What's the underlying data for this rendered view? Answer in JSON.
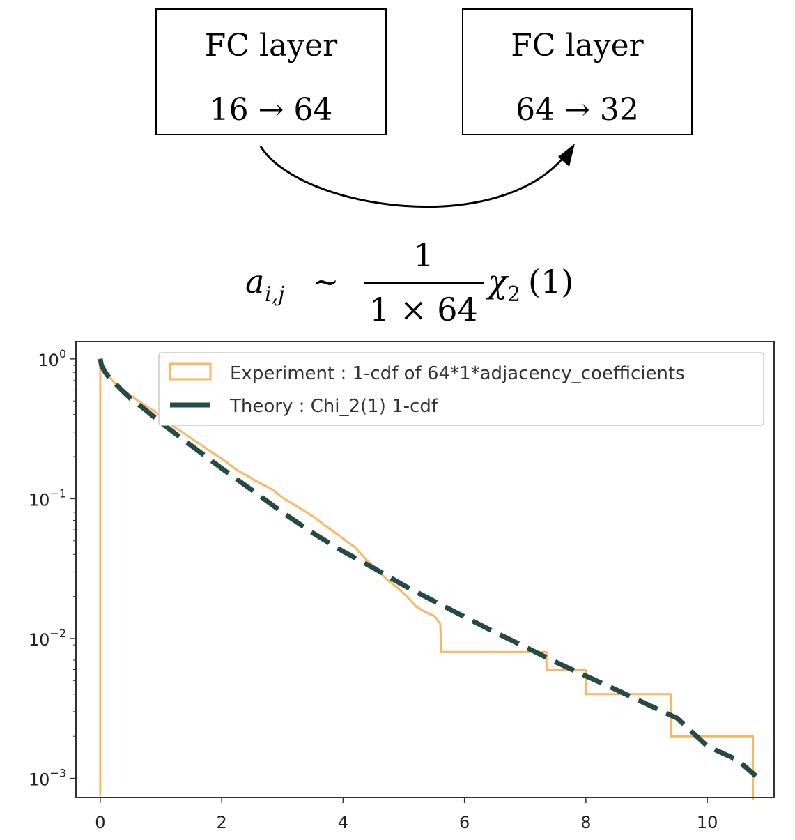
{
  "diagram": {
    "box1": {
      "title": "FC layer",
      "dims": "16 → 64"
    },
    "box2": {
      "title": "FC layer",
      "dims": "64 → 32"
    },
    "formula": {
      "lhs_var": "a",
      "lhs_sub": "i,j",
      "relation": "∼",
      "numerator": "1",
      "denominator": "1 × 64",
      "dist": "χ",
      "dist_sub": "2",
      "dist_arg": "(1)"
    }
  },
  "chart_data": {
    "type": "line",
    "title": "",
    "xlabel": "",
    "ylabel": "",
    "xlim": [
      -0.4,
      11.1
    ],
    "ylim": [
      0.00073,
      1.33
    ],
    "yscale": "log",
    "x_ticks": [
      {
        "value": 0,
        "label": "0"
      },
      {
        "value": 2,
        "label": "2"
      },
      {
        "value": 4,
        "label": "4"
      },
      {
        "value": 6,
        "label": "6"
      },
      {
        "value": 8,
        "label": "8"
      },
      {
        "value": 10,
        "label": "10"
      }
    ],
    "y_ticks": [
      {
        "value": 1,
        "base": "10",
        "exp": "0"
      },
      {
        "value": 0.1,
        "base": "10",
        "exp": "−1"
      },
      {
        "value": 0.01,
        "base": "10",
        "exp": "−2"
      },
      {
        "value": 0.001,
        "base": "10",
        "exp": "−3"
      }
    ],
    "grid": false,
    "legend_position": "top-right",
    "series": [
      {
        "name": "Experiment : 1-cdf of 64*1*adjacency_coefficients",
        "kind": "step",
        "color": "#ffb45e",
        "x": [
          0,
          0,
          0.03,
          0.1,
          0.2,
          0.3,
          0.45,
          0.6,
          0.75,
          0.9,
          1.05,
          1.2,
          1.35,
          1.5,
          1.65,
          1.8,
          1.95,
          2.1,
          2.25,
          2.4,
          2.55,
          2.7,
          2.85,
          3.0,
          3.15,
          3.3,
          3.5,
          3.65,
          3.8,
          3.95,
          4.1,
          4.2,
          4.3,
          4.4,
          4.5,
          4.6,
          4.7,
          4.8,
          4.9,
          5.0,
          5.1,
          5.2,
          5.35,
          5.5,
          5.6,
          5.62,
          7.35,
          7.35,
          8.0,
          8.0,
          9.4,
          9.4,
          10.75,
          10.75
        ],
        "y": [
          0.00075,
          1.0,
          0.93,
          0.82,
          0.7,
          0.63,
          0.57,
          0.51,
          0.46,
          0.42,
          0.37,
          0.33,
          0.3,
          0.27,
          0.245,
          0.22,
          0.2,
          0.18,
          0.16,
          0.148,
          0.135,
          0.125,
          0.115,
          0.102,
          0.093,
          0.085,
          0.075,
          0.067,
          0.06,
          0.054,
          0.048,
          0.045,
          0.04,
          0.036,
          0.033,
          0.03,
          0.027,
          0.025,
          0.023,
          0.021,
          0.019,
          0.017,
          0.0155,
          0.0145,
          0.0128,
          0.008,
          0.008,
          0.006,
          0.006,
          0.004,
          0.004,
          0.002,
          0.002,
          0.0007
        ]
      },
      {
        "name": "Theory : Chi_2(1) 1-cdf",
        "kind": "dashed",
        "color": "#264a45",
        "x": [
          0.001,
          0.02,
          0.06,
          0.12,
          0.2,
          0.35,
          0.5,
          0.75,
          1,
          1.5,
          2,
          2.5,
          3,
          3.5,
          4,
          4.5,
          5,
          5.5,
          6,
          6.5,
          7,
          7.5,
          8,
          8.5,
          9,
          9.5,
          10,
          10.5,
          10.8
        ],
        "y": [
          1.0,
          0.9,
          0.83,
          0.76,
          0.7,
          0.6,
          0.52,
          0.43,
          0.35,
          0.24,
          0.165,
          0.115,
          0.08,
          0.057,
          0.042,
          0.032,
          0.024,
          0.0185,
          0.0143,
          0.0111,
          0.0087,
          0.0068,
          0.0054,
          0.0043,
          0.0034,
          0.0027,
          0.0017,
          0.00135,
          0.00104
        ]
      }
    ]
  }
}
